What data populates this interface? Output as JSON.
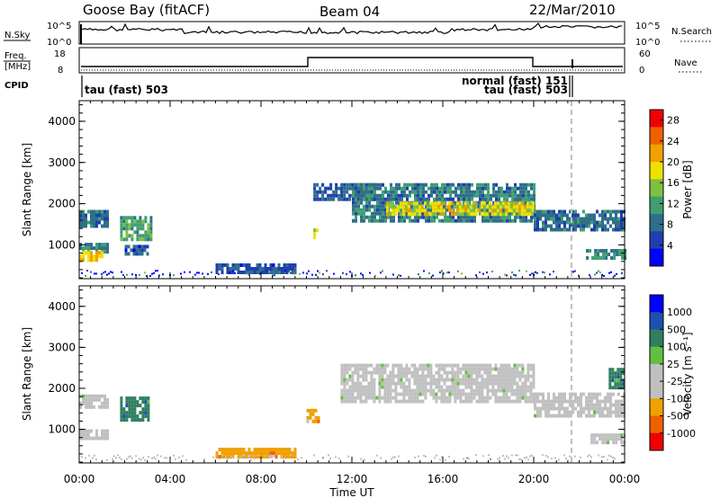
{
  "header": {
    "station": "Goose Bay (fitACF)",
    "beam": "Beam 04",
    "date": "22/Mar/2010"
  },
  "noise_panel": {
    "left_label": "N.Sky",
    "left_ticks": [
      "10^5",
      "10^0"
    ],
    "right_ticks": [
      "10^5",
      "10^0"
    ],
    "right_label": "N.Search"
  },
  "freq_panel": {
    "left_label_1": "Freq.",
    "left_label_2": "[MHz]",
    "left_ticks": [
      "18",
      "8"
    ],
    "right_ticks": [
      "60",
      "0"
    ],
    "right_label": "Nave"
  },
  "cpid": {
    "label": "CPID",
    "mode_1": "tau (fast) 503",
    "mode_2": "normal (fast) 151",
    "mode_3": "tau (fast) 503"
  },
  "x_axis": {
    "label": "Time UT",
    "ticks": [
      "00:00",
      "04:00",
      "08:00",
      "12:00",
      "16:00",
      "20:00",
      "00:00"
    ]
  },
  "chart_data": [
    {
      "type": "heatmap",
      "title": "",
      "ylabel": "Slant Range [km]",
      "xlabel": "",
      "ylim": [
        180,
        4500
      ],
      "y_ticks": [
        "1000",
        "2000",
        "3000",
        "4000"
      ],
      "x_range_hours": [
        0,
        24
      ],
      "colorbar_label": "Power [dB]",
      "colorbar_ticks": [
        "28",
        "24",
        "20",
        "16",
        "12",
        "8",
        "4"
      ],
      "colorbar_range": [
        0,
        30
      ],
      "colors": [
        "#0000ff",
        "#1f3fb0",
        "#2f6f8a",
        "#3f9f70",
        "#7fc040",
        "#f0e000",
        "#f0a000",
        "#f06000",
        "#f00000"
      ],
      "regions": [
        {
          "t": [
            0.0,
            1.2
          ],
          "r": [
            1500,
            1850
          ],
          "v": 8
        },
        {
          "t": [
            0.0,
            1.2
          ],
          "r": [
            850,
            1050
          ],
          "v": 10
        },
        {
          "t": [
            0.0,
            1.0
          ],
          "r": [
            650,
            850
          ],
          "v": 20
        },
        {
          "t": [
            1.8,
            3.2
          ],
          "r": [
            1100,
            1700
          ],
          "v": 12
        },
        {
          "t": [
            2.0,
            3.0
          ],
          "r": [
            800,
            1000
          ],
          "v": 6
        },
        {
          "t": [
            6.0,
            9.5
          ],
          "r": [
            330,
            550
          ],
          "v": 6
        },
        {
          "t": [
            10.3,
            10.5
          ],
          "r": [
            1200,
            1400
          ],
          "v": 16
        },
        {
          "t": [
            10.3,
            13.0
          ],
          "r": [
            2150,
            2500
          ],
          "v": 7
        },
        {
          "t": [
            12.0,
            20.0
          ],
          "r": [
            1600,
            2500
          ],
          "v": 9
        },
        {
          "t": [
            13.5,
            20.0
          ],
          "r": [
            1750,
            2050
          ],
          "v": 18
        },
        {
          "t": [
            20.0,
            24.0
          ],
          "r": [
            1350,
            1850
          ],
          "v": 8
        },
        {
          "t": [
            22.3,
            24.0
          ],
          "r": [
            650,
            900
          ],
          "v": 10
        }
      ]
    },
    {
      "type": "heatmap",
      "title": "",
      "ylabel": "Slant Range [km]",
      "xlabel": "Time UT",
      "ylim": [
        180,
        4500
      ],
      "y_ticks": [
        "1000",
        "2000",
        "3000",
        "4000"
      ],
      "x_range_hours": [
        0,
        24
      ],
      "colorbar_label": "Velocity [m s⁻¹]",
      "colorbar_ticks": [
        "1000",
        "500",
        "100",
        "25",
        "-25",
        "-100",
        "-500",
        "-1000"
      ],
      "colors": [
        "#f00000",
        "#f06000",
        "#f0a000",
        "#c0c0c0",
        "#c0c0c0",
        "#60c040",
        "#2f7f60",
        "#1f4fb0",
        "#0000ff"
      ],
      "regions": [
        {
          "t": [
            0.0,
            1.2
          ],
          "r": [
            1550,
            1850
          ],
          "v": 0
        },
        {
          "t": [
            0.0,
            1.2
          ],
          "r": [
            800,
            1000
          ],
          "v": 0
        },
        {
          "t": [
            1.8,
            3.0
          ],
          "r": [
            1250,
            1800
          ],
          "v": 150
        },
        {
          "t": [
            6.0,
            9.5
          ],
          "r": [
            300,
            550
          ],
          "v": -150
        },
        {
          "t": [
            10.0,
            10.5
          ],
          "r": [
            1200,
            1500
          ],
          "v": -300
        },
        {
          "t": [
            11.5,
            20.0
          ],
          "r": [
            1700,
            2600
          ],
          "v": 0
        },
        {
          "t": [
            20.0,
            24.0
          ],
          "r": [
            1300,
            1900
          ],
          "v": 0
        },
        {
          "t": [
            23.3,
            24.0
          ],
          "r": [
            2050,
            2500
          ],
          "v": 150
        },
        {
          "t": [
            22.5,
            24.0
          ],
          "r": [
            700,
            900
          ],
          "v": 0
        }
      ]
    }
  ]
}
